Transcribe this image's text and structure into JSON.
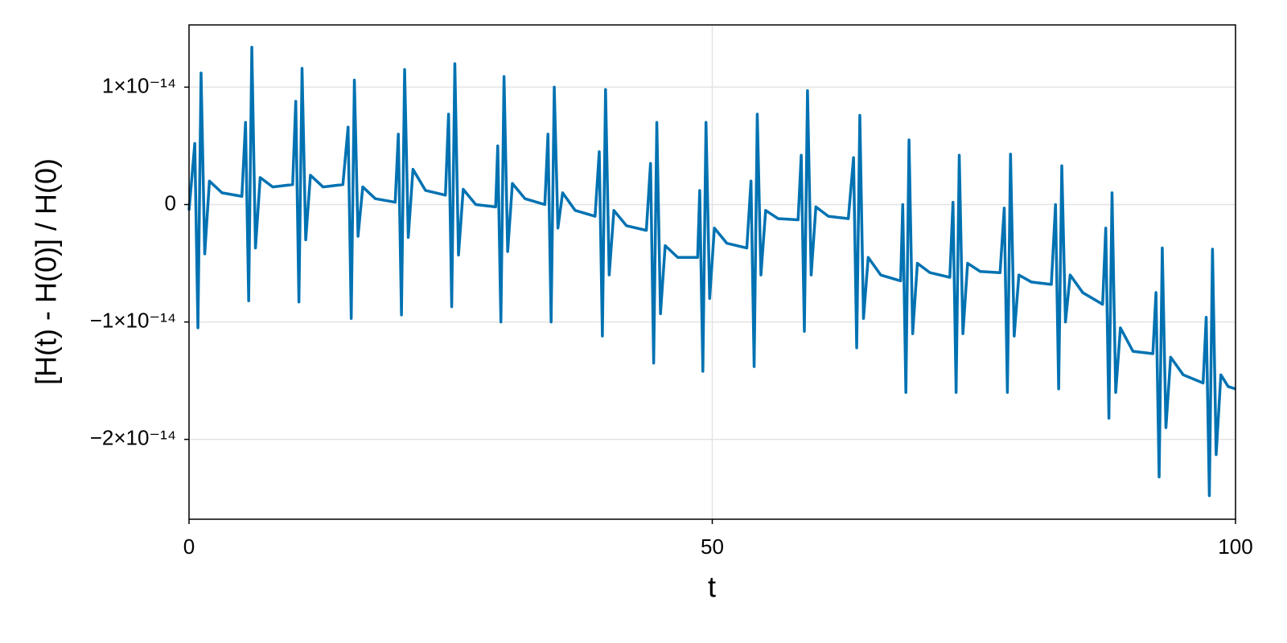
{
  "chart_data": {
    "type": "line",
    "color": "#0072b2",
    "x_label": "t",
    "y_label": "[H(t) - H(0)] / H(0)",
    "xlim": [
      0,
      100
    ],
    "xticks": [
      0,
      50,
      100
    ],
    "ylim": [
      -2.68e-14,
      1.53e-14
    ],
    "yticks": [
      {
        "value": -2e-14,
        "label": "−2×10⁻¹⁴"
      },
      {
        "value": -1e-14,
        "label": "−1×10⁻¹⁴"
      },
      0,
      {
        "value": 1e-14,
        "label": "1×10⁻¹⁴"
      }
    ],
    "grid": true,
    "x": [
      0,
      0.55,
      0.85,
      1.15,
      1.5,
      1.95,
      3.15,
      5.05,
      5.4,
      5.7,
      6.0,
      6.35,
      6.8,
      8.0,
      9.9,
      10.2,
      10.5,
      10.8,
      11.15,
      11.6,
      12.8,
      14.7,
      15.2,
      15.5,
      15.8,
      16.15,
      16.6,
      17.8,
      19.7,
      20.0,
      20.3,
      20.6,
      20.95,
      21.4,
      22.6,
      24.5,
      24.8,
      25.1,
      25.4,
      25.75,
      26.2,
      27.4,
      29.3,
      29.5,
      29.8,
      30.1,
      30.45,
      30.9,
      32.1,
      34.0,
      34.3,
      34.6,
      34.9,
      35.25,
      35.7,
      36.9,
      38.8,
      39.2,
      39.5,
      39.8,
      40.15,
      40.6,
      41.8,
      43.7,
      44.1,
      44.4,
      44.7,
      45.05,
      45.5,
      46.7,
      48.6,
      48.8,
      49.1,
      49.4,
      49.75,
      50.2,
      51.4,
      53.3,
      53.7,
      54.0,
      54.3,
      54.65,
      55.1,
      56.3,
      58.2,
      58.5,
      58.8,
      59.1,
      59.45,
      59.9,
      61.1,
      63.0,
      63.5,
      63.8,
      64.1,
      64.45,
      64.9,
      66.1,
      68.0,
      68.2,
      68.5,
      68.8,
      69.15,
      69.6,
      70.8,
      72.7,
      73.0,
      73.3,
      73.6,
      73.95,
      74.4,
      75.6,
      77.5,
      77.9,
      78.2,
      78.5,
      78.85,
      79.3,
      80.5,
      82.4,
      82.8,
      83.1,
      83.4,
      83.75,
      84.2,
      85.4,
      87.3,
      87.6,
      87.9,
      88.2,
      88.55,
      89.0,
      90.2,
      92.1,
      92.4,
      92.7,
      93.0,
      93.35,
      93.8,
      95.0,
      96.9,
      97.2,
      97.5,
      97.8,
      98.15,
      98.6,
      99.3,
      100
    ],
    "values": [
      -5e-16,
      5.2e-15,
      -1.05e-14,
      1.12e-14,
      -4.2e-15,
      2e-15,
      1e-15,
      7e-16,
      7e-15,
      -8.2e-15,
      1.34e-14,
      -3.7e-15,
      2.3e-15,
      1.5e-15,
      1.7e-15,
      8.8e-15,
      -8.3e-15,
      1.16e-14,
      -3e-15,
      2.5e-15,
      1.5e-15,
      1.7e-15,
      6.6e-15,
      -9.7e-15,
      1.06e-14,
      -2.7e-15,
      1.5e-15,
      5e-16,
      2e-16,
      6e-15,
      -9.4e-15,
      1.15e-14,
      -2.8e-15,
      3e-15,
      1.2e-15,
      8e-16,
      7.7e-15,
      -8.7e-15,
      1.2e-14,
      -4.3e-15,
      1.3e-15,
      0,
      -2e-16,
      5e-15,
      -1e-14,
      1.09e-14,
      -4e-15,
      1.8e-15,
      5e-16,
      0,
      6e-15,
      -1e-14,
      1e-14,
      -2e-15,
      1e-15,
      -5e-16,
      -1e-15,
      4.5e-15,
      -1.12e-14,
      9.8e-15,
      -6e-15,
      -5e-16,
      -1.8e-15,
      -2.2e-15,
      3.5e-15,
      -1.35e-14,
      7e-15,
      -9.3e-15,
      -3.5e-15,
      -4.5e-15,
      -4.5e-15,
      1.2e-15,
      -1.42e-14,
      7e-15,
      -8e-15,
      -2e-15,
      -3.3e-15,
      -3.7e-15,
      2e-15,
      -1.38e-14,
      7.7e-15,
      -6e-15,
      -5e-16,
      -1.2e-15,
      -1.3e-15,
      4.2e-15,
      -1.08e-14,
      9.7e-15,
      -6e-15,
      -2e-16,
      -1e-15,
      -1.2e-15,
      4e-15,
      -1.22e-14,
      7.6e-15,
      -9.7e-15,
      -4.5e-15,
      -6e-15,
      -6.5e-15,
      0,
      -1.6e-14,
      5.5e-15,
      -1.1e-14,
      -5e-15,
      -5.8e-15,
      -6.2e-15,
      2e-16,
      -1.6e-14,
      4.2e-15,
      -1.1e-14,
      -5e-15,
      -5.7e-15,
      -5.8e-15,
      -3e-16,
      -1.6e-14,
      4.3e-15,
      -1.12e-14,
      -6e-15,
      -6.6e-15,
      -6.8e-15,
      0,
      -1.57e-14,
      3.3e-15,
      -1e-14,
      -6e-15,
      -7.5e-15,
      -8.5e-15,
      -2e-15,
      -1.82e-14,
      1e-15,
      -1.6e-14,
      -1.05e-14,
      -1.25e-14,
      -1.27e-14,
      -7.5e-15,
      -2.32e-14,
      -3.7e-15,
      -1.9e-14,
      -1.3e-14,
      -1.45e-14,
      -1.52e-14,
      -9.6e-15,
      -2.48e-14,
      -3.8e-15,
      -2.13e-14,
      -1.45e-14,
      -1.55e-14,
      -1.57e-14
    ]
  }
}
